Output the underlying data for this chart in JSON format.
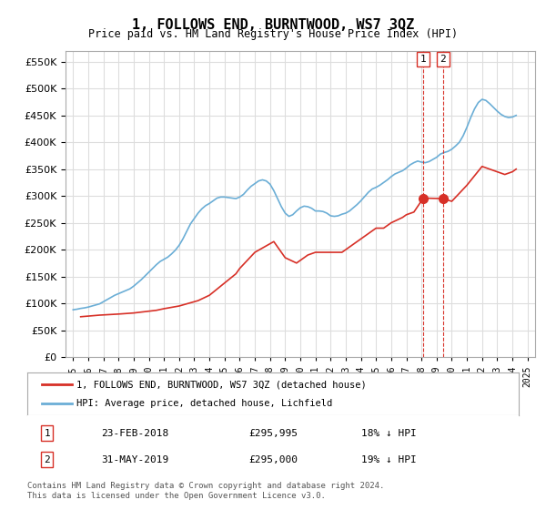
{
  "title": "1, FOLLOWS END, BURNTWOOD, WS7 3QZ",
  "subtitle": "Price paid vs. HM Land Registry's House Price Index (HPI)",
  "ylabel_ticks": [
    "£0",
    "£50K",
    "£100K",
    "£150K",
    "£200K",
    "£250K",
    "£300K",
    "£350K",
    "£400K",
    "£450K",
    "£500K",
    "£550K"
  ],
  "ylim": [
    0,
    570000
  ],
  "ytick_values": [
    0,
    50000,
    100000,
    150000,
    200000,
    250000,
    300000,
    350000,
    400000,
    450000,
    500000,
    550000
  ],
  "legend_line1": "1, FOLLOWS END, BURNTWOOD, WS7 3QZ (detached house)",
  "legend_line2": "HPI: Average price, detached house, Lichfield",
  "footnote": "Contains HM Land Registry data © Crown copyright and database right 2024.\nThis data is licensed under the Open Government Licence v3.0.",
  "transaction1_label": "1",
  "transaction1_date": "23-FEB-2018",
  "transaction1_price": "£295,995",
  "transaction1_hpi": "18% ↓ HPI",
  "transaction2_label": "2",
  "transaction2_date": "31-MAY-2019",
  "transaction2_price": "£295,000",
  "transaction2_hpi": "19% ↓ HPI",
  "marker1_year": 2018.12,
  "marker1_price": 295995,
  "marker2_year": 2019.42,
  "marker2_price": 295000,
  "vline1_year": 2018.12,
  "vline2_year": 2019.42,
  "background_color": "#ffffff",
  "grid_color": "#dddddd",
  "hpi_color": "#6baed6",
  "price_paid_color": "#d73027",
  "marker_color": "#d73027",
  "vline_color": "#d73027",
  "hpi_data_years": [
    1995.0,
    1995.25,
    1995.5,
    1995.75,
    1996.0,
    1996.25,
    1996.5,
    1996.75,
    1997.0,
    1997.25,
    1997.5,
    1997.75,
    1998.0,
    1998.25,
    1998.5,
    1998.75,
    1999.0,
    1999.25,
    1999.5,
    1999.75,
    2000.0,
    2000.25,
    2000.5,
    2000.75,
    2001.0,
    2001.25,
    2001.5,
    2001.75,
    2002.0,
    2002.25,
    2002.5,
    2002.75,
    2003.0,
    2003.25,
    2003.5,
    2003.75,
    2004.0,
    2004.25,
    2004.5,
    2004.75,
    2005.0,
    2005.25,
    2005.5,
    2005.75,
    2006.0,
    2006.25,
    2006.5,
    2006.75,
    2007.0,
    2007.25,
    2007.5,
    2007.75,
    2008.0,
    2008.25,
    2008.5,
    2008.75,
    2009.0,
    2009.25,
    2009.5,
    2009.75,
    2010.0,
    2010.25,
    2010.5,
    2010.75,
    2011.0,
    2011.25,
    2011.5,
    2011.75,
    2012.0,
    2012.25,
    2012.5,
    2012.75,
    2013.0,
    2013.25,
    2013.5,
    2013.75,
    2014.0,
    2014.25,
    2014.5,
    2014.75,
    2015.0,
    2015.25,
    2015.5,
    2015.75,
    2016.0,
    2016.25,
    2016.5,
    2016.75,
    2017.0,
    2017.25,
    2017.5,
    2017.75,
    2018.0,
    2018.25,
    2018.5,
    2018.75,
    2019.0,
    2019.25,
    2019.5,
    2019.75,
    2020.0,
    2020.25,
    2020.5,
    2020.75,
    2021.0,
    2021.25,
    2021.5,
    2021.75,
    2022.0,
    2022.25,
    2022.5,
    2022.75,
    2023.0,
    2023.25,
    2023.5,
    2023.75,
    2024.0,
    2024.25
  ],
  "hpi_data_values": [
    88000,
    89000,
    90500,
    91500,
    93000,
    95000,
    97000,
    99000,
    103000,
    107000,
    111000,
    115000,
    118000,
    121000,
    124000,
    127000,
    132000,
    138000,
    144000,
    151000,
    158000,
    165000,
    172000,
    178000,
    182000,
    186000,
    192000,
    199000,
    208000,
    220000,
    234000,
    248000,
    258000,
    268000,
    276000,
    282000,
    286000,
    291000,
    296000,
    298000,
    298000,
    297000,
    296000,
    295000,
    298000,
    303000,
    311000,
    318000,
    323000,
    328000,
    330000,
    328000,
    322000,
    310000,
    295000,
    280000,
    268000,
    262000,
    265000,
    272000,
    278000,
    281000,
    280000,
    277000,
    272000,
    272000,
    271000,
    268000,
    263000,
    262000,
    263000,
    266000,
    268000,
    272000,
    278000,
    284000,
    291000,
    299000,
    307000,
    313000,
    316000,
    320000,
    325000,
    330000,
    336000,
    341000,
    344000,
    347000,
    352000,
    358000,
    362000,
    365000,
    363000,
    362000,
    364000,
    368000,
    372000,
    378000,
    381000,
    383000,
    387000,
    393000,
    400000,
    412000,
    428000,
    446000,
    462000,
    474000,
    480000,
    478000,
    472000,
    465000,
    458000,
    452000,
    448000,
    446000,
    447000,
    450000
  ],
  "price_paid_years": [
    1995.5,
    1996.75,
    1998.0,
    1999.0,
    2000.5,
    2001.0,
    2002.0,
    2003.25,
    2004.0,
    2005.75,
    2006.0,
    2007.0,
    2008.25,
    2009.0,
    2009.75,
    2010.5,
    2011.0,
    2012.0,
    2012.75,
    2013.5,
    2014.25,
    2015.0,
    2015.5,
    2016.0,
    2016.75,
    2017.0,
    2017.5,
    2018.12,
    2019.42,
    2020.0,
    2021.0,
    2022.0,
    2022.5,
    2023.0,
    2023.5,
    2024.0,
    2024.25
  ],
  "price_paid_values": [
    75000,
    78000,
    80000,
    82000,
    87000,
    90000,
    95000,
    105000,
    115000,
    155000,
    165000,
    195000,
    215000,
    185000,
    175000,
    190000,
    195000,
    195000,
    195000,
    210000,
    225000,
    240000,
    240000,
    250000,
    260000,
    265000,
    270000,
    295995,
    295000,
    290000,
    320000,
    355000,
    350000,
    345000,
    340000,
    345000,
    350000
  ]
}
